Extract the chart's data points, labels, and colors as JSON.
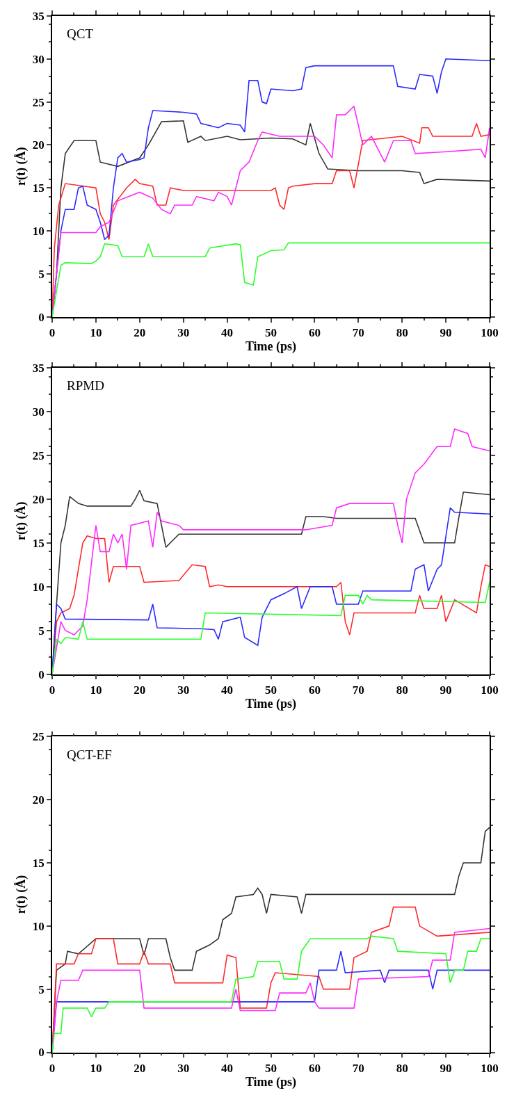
{
  "chart_data": [
    {
      "type": "line",
      "title": "QCT",
      "xlabel": "Time (ps)",
      "ylabel": "r(t) (Å)",
      "xlim": [
        0,
        100
      ],
      "xticks": [
        0,
        10,
        20,
        30,
        40,
        50,
        60,
        70,
        80,
        90,
        100
      ],
      "ylim": [
        0,
        35
      ],
      "yticks": [
        0,
        5,
        10,
        15,
        20,
        25,
        30,
        35
      ],
      "grid": false,
      "series": [
        {
          "color": "#333333",
          "x": [
            0,
            1,
            2,
            3,
            5,
            10,
            11,
            15,
            20,
            22,
            25,
            30,
            31,
            34,
            35,
            40,
            43,
            50,
            55,
            58,
            59,
            61,
            63,
            70,
            80,
            84,
            85,
            88,
            100
          ],
          "values": [
            0,
            5,
            15,
            19,
            20.5,
            20.5,
            18,
            17.5,
            18.5,
            20,
            22.7,
            22.8,
            20.3,
            21,
            20.5,
            21,
            20.6,
            20.8,
            20.7,
            20,
            22.5,
            19,
            17.2,
            17,
            17,
            16.8,
            15.5,
            16,
            15.8
          ]
        },
        {
          "color": "#ff2a2a",
          "x": [
            0,
            0.5,
            1.5,
            3,
            10,
            11,
            12,
            13,
            14,
            17,
            19,
            20,
            23,
            24,
            26,
            27,
            30,
            50,
            51,
            52,
            53,
            54,
            55,
            60,
            64,
            65,
            68,
            69,
            71,
            80,
            84,
            84.5,
            86,
            87,
            96,
            97,
            98,
            100
          ],
          "values": [
            0,
            8,
            13,
            15.5,
            15,
            12,
            11,
            9,
            13,
            15,
            16,
            15.5,
            15.2,
            13,
            13,
            15,
            14.7,
            14.7,
            15,
            13,
            12.5,
            15,
            15.2,
            15.5,
            15.5,
            17,
            17,
            15,
            20.5,
            21,
            20.2,
            22,
            22,
            21,
            21,
            22.5,
            21,
            21.2
          ]
        },
        {
          "color": "#2a2aff",
          "x": [
            0,
            1,
            2,
            3,
            5,
            6,
            7,
            8,
            10,
            11,
            12,
            13,
            14,
            15,
            16,
            17,
            20,
            21,
            22,
            23,
            30,
            33,
            34,
            38,
            40,
            43,
            44,
            45,
            47,
            48,
            49,
            50,
            55,
            57,
            58,
            60,
            78,
            79,
            83,
            84,
            87,
            88,
            89,
            90,
            100
          ],
          "values": [
            0,
            5,
            10,
            12.5,
            12.5,
            15,
            15.2,
            13,
            12.5,
            11,
            9,
            9.5,
            15,
            18.5,
            19,
            18,
            18.3,
            18.5,
            22,
            24,
            23.8,
            23.6,
            22.5,
            22,
            22.5,
            22.3,
            21.5,
            27.5,
            27.5,
            25,
            24.8,
            26.5,
            26.3,
            26.5,
            29,
            29.2,
            29.2,
            26.8,
            26.5,
            28.2,
            28,
            26,
            28.5,
            30,
            29.8
          ]
        },
        {
          "color": "#ff2aff",
          "x": [
            0,
            1,
            2,
            10,
            11,
            13,
            15,
            20,
            23,
            25,
            27,
            28,
            32,
            33,
            37,
            38,
            40,
            41,
            42,
            43,
            45,
            47,
            48,
            52,
            60,
            62,
            64,
            65,
            67,
            69,
            71,
            73,
            76,
            78,
            82,
            83,
            90,
            98,
            99,
            100
          ],
          "values": [
            0,
            5,
            9.8,
            9.8,
            10.5,
            11,
            13.5,
            14.5,
            13.8,
            12.5,
            12,
            13,
            13,
            14,
            13.5,
            14.5,
            14,
            13,
            15,
            17,
            18,
            20.5,
            21.5,
            21,
            21,
            20,
            18.5,
            23.5,
            23.5,
            24.5,
            20,
            21,
            18,
            20.5,
            20.5,
            19,
            19.2,
            19.5,
            18.5,
            22
          ]
        },
        {
          "color": "#2aff2a",
          "x": [
            0,
            1,
            2,
            3,
            9,
            10,
            11,
            12,
            15,
            16,
            21,
            22,
            23,
            35,
            36,
            42,
            43,
            44,
            46,
            47,
            50,
            53,
            54,
            100
          ],
          "values": [
            0,
            3,
            6,
            6.3,
            6.2,
            6.5,
            7,
            8.5,
            8.3,
            7,
            7,
            8.5,
            7,
            7,
            8,
            8.5,
            8.4,
            4,
            3.7,
            7,
            7.7,
            7.8,
            8.6,
            8.6
          ]
        }
      ]
    },
    {
      "type": "line",
      "title": "RPMD",
      "xlabel": "Time (ps)",
      "ylabel": "r(t) (Å)",
      "xlim": [
        0,
        100
      ],
      "xticks": [
        0,
        10,
        20,
        30,
        40,
        50,
        60,
        70,
        80,
        90,
        100
      ],
      "ylim": [
        0,
        35
      ],
      "yticks": [
        0,
        5,
        10,
        15,
        20,
        25,
        30,
        35
      ],
      "grid": false,
      "series": [
        {
          "color": "#333333",
          "x": [
            0,
            1,
            2,
            3,
            4,
            6,
            8,
            18,
            19,
            20,
            21,
            24,
            25,
            26,
            28,
            29,
            57,
            58,
            62,
            65,
            80,
            83,
            85,
            92,
            93,
            94,
            100
          ],
          "values": [
            0,
            8,
            15,
            17,
            20.3,
            19.5,
            19.2,
            19.2,
            20,
            21,
            19.8,
            19.5,
            17,
            14.5,
            15.5,
            16,
            16,
            18,
            18,
            17.8,
            17.8,
            17.8,
            15,
            15,
            18,
            20.8,
            20.5
          ]
        },
        {
          "color": "#ff2a2a",
          "x": [
            0,
            1,
            2,
            4,
            5,
            7,
            8,
            10,
            12,
            13,
            14,
            20,
            21,
            29,
            32,
            35,
            36,
            38,
            40,
            65,
            66,
            67,
            68,
            69,
            75,
            83,
            84,
            85,
            88,
            89,
            90,
            92,
            97,
            98,
            99,
            100
          ],
          "values": [
            0,
            6,
            7,
            7.5,
            9,
            15,
            15.8,
            15.5,
            15.5,
            10.5,
            12.3,
            12.3,
            10.5,
            10.7,
            12.5,
            12.3,
            10,
            10.2,
            10,
            10,
            10.5,
            6,
            4.5,
            7,
            7,
            7,
            9,
            7.5,
            7.5,
            9,
            6,
            8.5,
            7,
            10,
            12.5,
            12.3
          ]
        },
        {
          "color": "#2a2aff",
          "x": [
            0,
            1,
            2,
            3,
            22,
            23,
            24,
            34,
            37,
            38,
            39,
            43,
            44,
            47,
            48,
            50,
            53,
            56,
            57,
            59,
            64,
            65,
            70,
            71,
            82,
            83,
            85,
            86,
            88,
            89,
            91,
            92,
            100
          ],
          "values": [
            0,
            8,
            7.5,
            6.3,
            6.2,
            8,
            5.3,
            5.2,
            5.1,
            4,
            6,
            6.5,
            4.2,
            3.3,
            6.5,
            8.5,
            9.2,
            10,
            7.5,
            10,
            10,
            8,
            8,
            9.5,
            9.5,
            12,
            12.5,
            9.5,
            12,
            12.5,
            19,
            18.5,
            18.3
          ]
        },
        {
          "color": "#ff2aff",
          "x": [
            0,
            1,
            2,
            3,
            5,
            7,
            8,
            10,
            11,
            13,
            14,
            15,
            16,
            17,
            18,
            22,
            23,
            24,
            25,
            29,
            30,
            58,
            64,
            65,
            68,
            78,
            79,
            80,
            81,
            83,
            85,
            88,
            91,
            92,
            95,
            96,
            100
          ],
          "values": [
            0,
            3,
            6,
            5,
            4.5,
            5.5,
            8.5,
            17,
            14,
            14,
            16,
            15,
            16,
            12,
            17,
            17.5,
            14.5,
            18.5,
            17.5,
            17,
            16.5,
            16.5,
            17,
            19,
            19.5,
            19.5,
            17,
            15,
            20,
            23,
            24,
            26,
            26,
            28,
            27.5,
            26,
            25.5
          ]
        },
        {
          "color": "#2aff2a",
          "x": [
            0,
            1,
            2,
            3,
            6,
            7,
            8,
            34,
            35,
            66,
            67,
            70,
            71,
            72,
            73,
            99,
            100
          ],
          "values": [
            0,
            4,
            3.5,
            4.2,
            4,
            6,
            4,
            4,
            7,
            6.7,
            9,
            9,
            8,
            9,
            8.5,
            8.2,
            10.5
          ]
        }
      ]
    },
    {
      "type": "line",
      "title": "QCT-EF",
      "xlabel": "Time (ps)",
      "ylabel": "r(t) (Å)",
      "xlim": [
        0,
        100
      ],
      "xticks": [
        0,
        10,
        20,
        30,
        40,
        50,
        60,
        70,
        80,
        90,
        100
      ],
      "ylim": [
        0,
        25
      ],
      "yticks": [
        0,
        5,
        10,
        15,
        20,
        25
      ],
      "grid": false,
      "series": [
        {
          "color": "#333333",
          "x": [
            0,
            1,
            3,
            3.5,
            6,
            10,
            20,
            21,
            22,
            26,
            27,
            28,
            32,
            33,
            36,
            38,
            39,
            41,
            42,
            46,
            47,
            48,
            49,
            50,
            56,
            57,
            58,
            92,
            93,
            94,
            98,
            99,
            100
          ],
          "values": [
            0,
            6.5,
            7,
            8,
            7.8,
            9,
            9,
            7.7,
            9,
            9,
            7.5,
            6.5,
            6.5,
            8,
            8.5,
            9,
            10.5,
            11,
            12.3,
            12.5,
            13,
            12.5,
            11,
            12.5,
            12.3,
            11,
            12.5,
            12.5,
            14,
            15,
            15,
            17.5,
            17.8
          ]
        },
        {
          "color": "#ff2a2a",
          "x": [
            0,
            1,
            5,
            6,
            9,
            10,
            14,
            15,
            20,
            21,
            22,
            27,
            28,
            39,
            40,
            42,
            43,
            49,
            50,
            51,
            61,
            62,
            68,
            69,
            72,
            73,
            77,
            78,
            83,
            84,
            88,
            100
          ],
          "values": [
            0,
            7,
            7,
            7.8,
            7.8,
            9,
            9,
            7,
            7,
            8,
            7,
            7,
            5.5,
            5.5,
            7.7,
            7.5,
            3.5,
            3.5,
            5.5,
            6.3,
            6,
            5,
            5,
            7.5,
            8,
            9.5,
            10,
            11.5,
            11.5,
            10,
            9.2,
            9.5
          ]
        },
        {
          "color": "#2a2aff",
          "x": [
            0,
            1,
            60,
            61,
            65,
            66,
            67,
            75,
            76,
            77,
            86,
            87,
            88,
            100
          ],
          "values": [
            0,
            4,
            4,
            6.5,
            6.5,
            8,
            6.3,
            6.5,
            5.5,
            6.5,
            6.5,
            5,
            6.5,
            6.5
          ]
        },
        {
          "color": "#ff2aff",
          "x": [
            0,
            1,
            2,
            6,
            7,
            20,
            21,
            41,
            42,
            43,
            51,
            52,
            58,
            59,
            60,
            61,
            69,
            70,
            86,
            87,
            91,
            92,
            100
          ],
          "values": [
            0,
            4,
            5.7,
            5.7,
            6.5,
            6.5,
            3.5,
            3.5,
            5,
            3.3,
            3.3,
            4.7,
            4.7,
            5.5,
            4,
            3.5,
            3.5,
            5.8,
            6,
            7.3,
            7.3,
            9.5,
            9.8
          ]
        },
        {
          "color": "#2aff2a",
          "x": [
            0,
            0.5,
            2,
            2.5,
            8,
            9,
            10,
            12,
            13,
            41,
            42,
            46,
            47,
            52,
            53,
            56,
            57,
            59,
            72,
            73,
            78,
            79,
            90,
            91,
            92,
            94,
            95,
            97,
            98,
            100
          ],
          "values": [
            0,
            1.5,
            1.5,
            3.5,
            3.5,
            2.8,
            3.5,
            3.5,
            4,
            4,
            5.8,
            6,
            7.2,
            7.2,
            5.8,
            5.8,
            8,
            9,
            9,
            9.2,
            9,
            8,
            7.8,
            5.5,
            6.5,
            6.5,
            8,
            8,
            9,
            9
          ]
        }
      ]
    }
  ]
}
